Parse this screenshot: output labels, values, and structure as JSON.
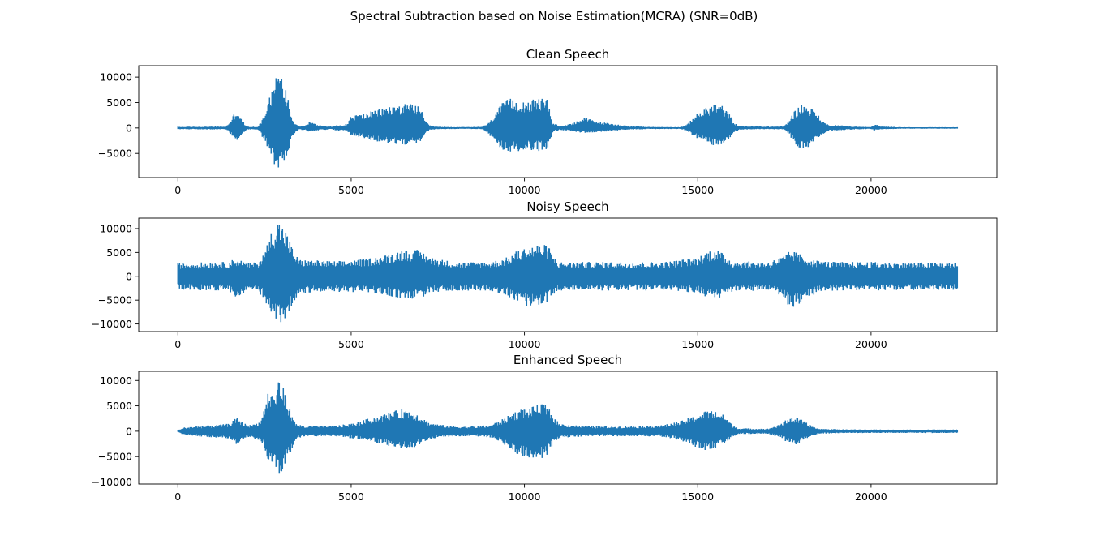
{
  "figure": {
    "suptitle": "Spectral Subtraction based on Noise Estimation(MCRA) (SNR=0dB)"
  },
  "chart_data": [
    {
      "type": "line",
      "title": "Clean Speech",
      "color": "#1f77b4",
      "xlim": [
        -1130,
        23630
      ],
      "ylim": [
        -9750,
        12250
      ],
      "xticks": [
        0,
        5000,
        10000,
        15000,
        20000
      ],
      "yticks": [
        -5000,
        0,
        5000,
        10000
      ],
      "n_samples": 22500,
      "envelope_x": [
        0,
        1400,
        1500,
        1700,
        1850,
        2000,
        2300,
        2500,
        2600,
        2800,
        2900,
        3000,
        3200,
        3300,
        3500,
        3700,
        3800,
        4000,
        4200,
        4400,
        4600,
        4800,
        4900,
        5000,
        5300,
        5600,
        6000,
        6400,
        6800,
        7000,
        7150,
        7300,
        7500,
        8000,
        8500,
        8800,
        9000,
        9200,
        9400,
        9600,
        9800,
        10000,
        10300,
        10600,
        10700,
        10800,
        11000,
        11300,
        11500,
        11700,
        11900,
        12100,
        12400,
        13000,
        13500,
        14000,
        14500,
        14700,
        14900,
        15100,
        15300,
        15500,
        15700,
        15900,
        16050,
        16200,
        16500,
        17000,
        17500,
        17600,
        17800,
        18000,
        18200,
        18400,
        18600,
        18800,
        19000,
        19500,
        20000,
        20100,
        20300,
        21000,
        22000,
        22500
      ],
      "envelope_upper": [
        250,
        300,
        1300,
        3800,
        1500,
        300,
        200,
        2500,
        6200,
        9500,
        11000,
        10000,
        6000,
        1800,
        300,
        600,
        1300,
        700,
        500,
        300,
        600,
        600,
        1000,
        2500,
        2800,
        3300,
        4200,
        4700,
        4800,
        4000,
        1200,
        400,
        250,
        200,
        200,
        300,
        1200,
        3500,
        5200,
        5800,
        5700,
        5500,
        5600,
        6200,
        5000,
        1200,
        400,
        800,
        1300,
        2200,
        1700,
        1300,
        1000,
        400,
        250,
        200,
        200,
        700,
        2500,
        3400,
        4200,
        4900,
        4500,
        3000,
        1000,
        400,
        350,
        300,
        350,
        1200,
        3500,
        4800,
        4300,
        3200,
        1400,
        500,
        600,
        300,
        200,
        800,
        300,
        150,
        150,
        150
      ],
      "envelope_lower": [
        -250,
        -300,
        -1000,
        -2500,
        -1300,
        -300,
        -300,
        -2500,
        -4500,
        -7800,
        -8500,
        -7500,
        -4500,
        -1500,
        -300,
        -500,
        -900,
        -500,
        -400,
        -300,
        -500,
        -600,
        -800,
        -1500,
        -2000,
        -2500,
        -3000,
        -3300,
        -3300,
        -2800,
        -900,
        -350,
        -250,
        -200,
        -200,
        -300,
        -1500,
        -3500,
        -4600,
        -5000,
        -4600,
        -4400,
        -4500,
        -4500,
        -3600,
        -900,
        -400,
        -600,
        -800,
        -1000,
        -900,
        -800,
        -700,
        -300,
        -250,
        -200,
        -200,
        -600,
        -1700,
        -2500,
        -3200,
        -3500,
        -3200,
        -2200,
        -800,
        -350,
        -300,
        -250,
        -300,
        -1000,
        -3000,
        -4500,
        -3800,
        -2700,
        -1300,
        -500,
        -500,
        -300,
        -200,
        -500,
        -250,
        -150,
        -150,
        -150
      ]
    },
    {
      "type": "line",
      "title": "Noisy Speech",
      "color": "#1f77b4",
      "xlim": [
        -1130,
        23630
      ],
      "ylim": [
        -11600,
        12200
      ],
      "xticks": [
        0,
        5000,
        10000,
        15000,
        20000
      ],
      "yticks": [
        -10000,
        -5000,
        0,
        5000,
        10000
      ],
      "n_samples": 22500,
      "envelope_x": [
        0,
        1000,
        1400,
        1700,
        2000,
        2300,
        2500,
        2700,
        2900,
        3100,
        3300,
        3500,
        4500,
        5000,
        5500,
        6000,
        6500,
        7000,
        7300,
        8000,
        9000,
        9500,
        9800,
        10100,
        10400,
        10700,
        10800,
        11000,
        12000,
        13000,
        14000,
        15000,
        15300,
        15500,
        15800,
        16000,
        17000,
        17400,
        17700,
        18000,
        18300,
        18600,
        19000,
        20000,
        21000,
        22000,
        22500
      ],
      "envelope_upper": [
        2800,
        3000,
        3000,
        3800,
        2800,
        3000,
        5000,
        9500,
        12000,
        10000,
        6000,
        3500,
        3200,
        3300,
        3800,
        4500,
        5700,
        5500,
        4000,
        3000,
        3000,
        4000,
        5500,
        6200,
        6800,
        6500,
        4500,
        3000,
        3000,
        3000,
        3000,
        4000,
        5500,
        5800,
        4500,
        3200,
        3000,
        4000,
        5500,
        4500,
        3500,
        3200,
        3000,
        3000,
        2900,
        2900,
        2900
      ],
      "envelope_lower": [
        -2800,
        -3000,
        -3000,
        -4500,
        -3000,
        -3000,
        -5000,
        -9000,
        -10500,
        -9000,
        -6000,
        -3500,
        -3300,
        -3300,
        -3500,
        -4000,
        -4800,
        -4700,
        -3500,
        -3000,
        -3000,
        -4000,
        -5800,
        -6500,
        -6000,
        -5500,
        -4000,
        -3000,
        -3000,
        -3000,
        -3000,
        -3500,
        -4500,
        -5000,
        -4200,
        -3200,
        -3000,
        -4000,
        -7000,
        -5500,
        -4000,
        -3200,
        -3000,
        -3000,
        -2900,
        -2900,
        -2900
      ]
    },
    {
      "type": "line",
      "title": "Enhanced Speech",
      "color": "#1f77b4",
      "xlim": [
        -1130,
        23630
      ],
      "ylim": [
        -10400,
        11800
      ],
      "xticks": [
        0,
        5000,
        10000,
        15000,
        20000
      ],
      "yticks": [
        -10000,
        -5000,
        0,
        5000,
        10000
      ],
      "n_samples": 22500,
      "envelope_x": [
        0,
        200,
        500,
        1000,
        1500,
        1700,
        1900,
        2100,
        2400,
        2600,
        2800,
        2900,
        3000,
        3200,
        3400,
        3700,
        4000,
        4500,
        5000,
        5500,
        6000,
        6500,
        6800,
        7000,
        7300,
        7700,
        8000,
        8500,
        9000,
        9400,
        9800,
        10200,
        10600,
        10800,
        11000,
        11500,
        12000,
        13000,
        14000,
        14500,
        14900,
        15200,
        15500,
        15800,
        16000,
        16200,
        17000,
        17400,
        17600,
        17900,
        18200,
        18500,
        19000,
        20000,
        21000,
        22000,
        22400
      ],
      "envelope_upper": [
        200,
        800,
        1000,
        1200,
        1500,
        2800,
        1600,
        1200,
        2000,
        8000,
        7000,
        10800,
        9500,
        5000,
        1500,
        1000,
        1100,
        1100,
        1500,
        2500,
        3500,
        4500,
        4000,
        3000,
        1600,
        1200,
        1000,
        1000,
        1200,
        2500,
        4200,
        4800,
        5500,
        3500,
        1500,
        1200,
        1000,
        1000,
        1200,
        2000,
        3000,
        4000,
        4200,
        3000,
        1200,
        600,
        500,
        1400,
        2800,
        2700,
        1400,
        500,
        400,
        350,
        350,
        350,
        350
      ],
      "envelope_lower": [
        -200,
        -800,
        -1000,
        -1200,
        -1500,
        -2800,
        -1600,
        -1200,
        -2000,
        -5500,
        -6500,
        -9500,
        -8500,
        -5000,
        -1500,
        -1000,
        -1000,
        -1000,
        -1400,
        -2000,
        -2800,
        -3500,
        -3200,
        -2500,
        -1500,
        -1100,
        -1000,
        -1000,
        -1200,
        -2500,
        -5000,
        -5200,
        -5300,
        -3000,
        -1400,
        -1100,
        -1000,
        -1000,
        -1100,
        -1800,
        -3000,
        -3800,
        -3500,
        -2500,
        -1100,
        -550,
        -500,
        -1200,
        -2400,
        -2700,
        -1200,
        -500,
        -400,
        -350,
        -350,
        -350,
        -350
      ]
    }
  ]
}
